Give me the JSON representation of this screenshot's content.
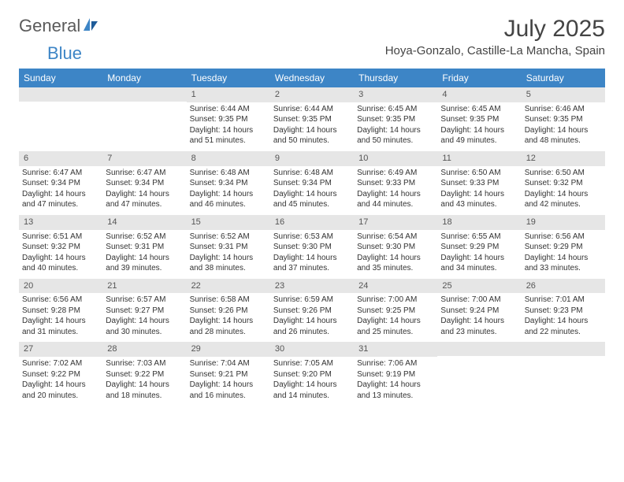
{
  "brand": {
    "part1": "General",
    "part2": "Blue"
  },
  "title": "July 2025",
  "location": "Hoya-Gonzalo, Castille-La Mancha, Spain",
  "colors": {
    "header_bg": "#3d85c6",
    "header_text": "#ffffff",
    "daynum_bg": "#e6e6e6",
    "text": "#333333",
    "logo_gray": "#5a5a5a",
    "logo_blue": "#3d85c6"
  },
  "dow": [
    "Sunday",
    "Monday",
    "Tuesday",
    "Wednesday",
    "Thursday",
    "Friday",
    "Saturday"
  ],
  "weeks": [
    [
      null,
      null,
      {
        "n": "1",
        "sr": "Sunrise: 6:44 AM",
        "ss": "Sunset: 9:35 PM",
        "dl": "Daylight: 14 hours and 51 minutes."
      },
      {
        "n": "2",
        "sr": "Sunrise: 6:44 AM",
        "ss": "Sunset: 9:35 PM",
        "dl": "Daylight: 14 hours and 50 minutes."
      },
      {
        "n": "3",
        "sr": "Sunrise: 6:45 AM",
        "ss": "Sunset: 9:35 PM",
        "dl": "Daylight: 14 hours and 50 minutes."
      },
      {
        "n": "4",
        "sr": "Sunrise: 6:45 AM",
        "ss": "Sunset: 9:35 PM",
        "dl": "Daylight: 14 hours and 49 minutes."
      },
      {
        "n": "5",
        "sr": "Sunrise: 6:46 AM",
        "ss": "Sunset: 9:35 PM",
        "dl": "Daylight: 14 hours and 48 minutes."
      }
    ],
    [
      {
        "n": "6",
        "sr": "Sunrise: 6:47 AM",
        "ss": "Sunset: 9:34 PM",
        "dl": "Daylight: 14 hours and 47 minutes."
      },
      {
        "n": "7",
        "sr": "Sunrise: 6:47 AM",
        "ss": "Sunset: 9:34 PM",
        "dl": "Daylight: 14 hours and 47 minutes."
      },
      {
        "n": "8",
        "sr": "Sunrise: 6:48 AM",
        "ss": "Sunset: 9:34 PM",
        "dl": "Daylight: 14 hours and 46 minutes."
      },
      {
        "n": "9",
        "sr": "Sunrise: 6:48 AM",
        "ss": "Sunset: 9:34 PM",
        "dl": "Daylight: 14 hours and 45 minutes."
      },
      {
        "n": "10",
        "sr": "Sunrise: 6:49 AM",
        "ss": "Sunset: 9:33 PM",
        "dl": "Daylight: 14 hours and 44 minutes."
      },
      {
        "n": "11",
        "sr": "Sunrise: 6:50 AM",
        "ss": "Sunset: 9:33 PM",
        "dl": "Daylight: 14 hours and 43 minutes."
      },
      {
        "n": "12",
        "sr": "Sunrise: 6:50 AM",
        "ss": "Sunset: 9:32 PM",
        "dl": "Daylight: 14 hours and 42 minutes."
      }
    ],
    [
      {
        "n": "13",
        "sr": "Sunrise: 6:51 AM",
        "ss": "Sunset: 9:32 PM",
        "dl": "Daylight: 14 hours and 40 minutes."
      },
      {
        "n": "14",
        "sr": "Sunrise: 6:52 AM",
        "ss": "Sunset: 9:31 PM",
        "dl": "Daylight: 14 hours and 39 minutes."
      },
      {
        "n": "15",
        "sr": "Sunrise: 6:52 AM",
        "ss": "Sunset: 9:31 PM",
        "dl": "Daylight: 14 hours and 38 minutes."
      },
      {
        "n": "16",
        "sr": "Sunrise: 6:53 AM",
        "ss": "Sunset: 9:30 PM",
        "dl": "Daylight: 14 hours and 37 minutes."
      },
      {
        "n": "17",
        "sr": "Sunrise: 6:54 AM",
        "ss": "Sunset: 9:30 PM",
        "dl": "Daylight: 14 hours and 35 minutes."
      },
      {
        "n": "18",
        "sr": "Sunrise: 6:55 AM",
        "ss": "Sunset: 9:29 PM",
        "dl": "Daylight: 14 hours and 34 minutes."
      },
      {
        "n": "19",
        "sr": "Sunrise: 6:56 AM",
        "ss": "Sunset: 9:29 PM",
        "dl": "Daylight: 14 hours and 33 minutes."
      }
    ],
    [
      {
        "n": "20",
        "sr": "Sunrise: 6:56 AM",
        "ss": "Sunset: 9:28 PM",
        "dl": "Daylight: 14 hours and 31 minutes."
      },
      {
        "n": "21",
        "sr": "Sunrise: 6:57 AM",
        "ss": "Sunset: 9:27 PM",
        "dl": "Daylight: 14 hours and 30 minutes."
      },
      {
        "n": "22",
        "sr": "Sunrise: 6:58 AM",
        "ss": "Sunset: 9:26 PM",
        "dl": "Daylight: 14 hours and 28 minutes."
      },
      {
        "n": "23",
        "sr": "Sunrise: 6:59 AM",
        "ss": "Sunset: 9:26 PM",
        "dl": "Daylight: 14 hours and 26 minutes."
      },
      {
        "n": "24",
        "sr": "Sunrise: 7:00 AM",
        "ss": "Sunset: 9:25 PM",
        "dl": "Daylight: 14 hours and 25 minutes."
      },
      {
        "n": "25",
        "sr": "Sunrise: 7:00 AM",
        "ss": "Sunset: 9:24 PM",
        "dl": "Daylight: 14 hours and 23 minutes."
      },
      {
        "n": "26",
        "sr": "Sunrise: 7:01 AM",
        "ss": "Sunset: 9:23 PM",
        "dl": "Daylight: 14 hours and 22 minutes."
      }
    ],
    [
      {
        "n": "27",
        "sr": "Sunrise: 7:02 AM",
        "ss": "Sunset: 9:22 PM",
        "dl": "Daylight: 14 hours and 20 minutes."
      },
      {
        "n": "28",
        "sr": "Sunrise: 7:03 AM",
        "ss": "Sunset: 9:22 PM",
        "dl": "Daylight: 14 hours and 18 minutes."
      },
      {
        "n": "29",
        "sr": "Sunrise: 7:04 AM",
        "ss": "Sunset: 9:21 PM",
        "dl": "Daylight: 14 hours and 16 minutes."
      },
      {
        "n": "30",
        "sr": "Sunrise: 7:05 AM",
        "ss": "Sunset: 9:20 PM",
        "dl": "Daylight: 14 hours and 14 minutes."
      },
      {
        "n": "31",
        "sr": "Sunrise: 7:06 AM",
        "ss": "Sunset: 9:19 PM",
        "dl": "Daylight: 14 hours and 13 minutes."
      },
      null,
      null
    ]
  ]
}
